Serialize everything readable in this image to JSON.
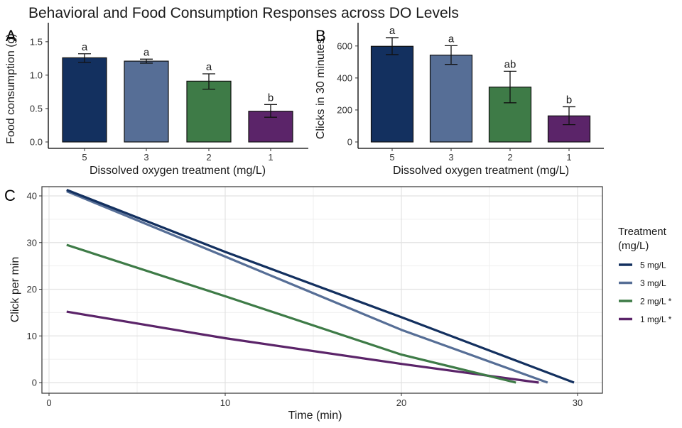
{
  "title": "Behavioral and Food Consumption Responses across DO Levels",
  "colors": {
    "5": "#13305f",
    "3": "#566e96",
    "2": "#3e7b47",
    "1": "#5b2469"
  },
  "chart_data": [
    {
      "panel": "A",
      "type": "bar",
      "title": "",
      "xlabel": "Dissolved oxygen treatment (mg/L)",
      "ylabel": "Food consumption (g)",
      "categories": [
        "5",
        "3",
        "2",
        "1"
      ],
      "values": [
        1.26,
        1.21,
        0.91,
        0.46
      ],
      "error_low": [
        1.19,
        1.18,
        0.79,
        0.37
      ],
      "error_high": [
        1.32,
        1.24,
        1.02,
        0.56
      ],
      "significance_labels": [
        "a",
        "a",
        "a",
        "b"
      ],
      "yticks": [
        0.0,
        0.5,
        1.0,
        1.5
      ],
      "ytick_labels": [
        "0.0",
        "0.5",
        "1.0",
        "1.5"
      ],
      "ylim": [
        0,
        1.7
      ],
      "grid": false
    },
    {
      "panel": "B",
      "type": "bar",
      "title": "",
      "xlabel": "Dissolved oxygen treatment (mg/L)",
      "ylabel": "Clicks in 30 minutes",
      "categories": [
        "5",
        "3",
        "2",
        "1"
      ],
      "values": [
        598,
        543,
        343,
        163
      ],
      "error_low": [
        546,
        485,
        245,
        108
      ],
      "error_high": [
        652,
        602,
        442,
        220
      ],
      "significance_labels": [
        "a",
        "a",
        "ab",
        "b"
      ],
      "yticks": [
        0,
        200,
        400,
        600
      ],
      "ytick_labels": [
        "0",
        "200",
        "400",
        "600"
      ],
      "ylim": [
        0,
        710
      ],
      "grid": false
    },
    {
      "panel": "C",
      "type": "line",
      "title": "",
      "xlabel": "Time (min)",
      "ylabel": "Click per min",
      "xticks": [
        0,
        10,
        20,
        30
      ],
      "xtick_labels": [
        "0",
        "10",
        "20",
        "30"
      ],
      "yticks": [
        0,
        10,
        20,
        30,
        40
      ],
      "ytick_labels": [
        "0",
        "10",
        "20",
        "30",
        "40"
      ],
      "xlim": [
        -1.2,
        30.8
      ],
      "ylim": [
        -2.2,
        42.5
      ],
      "grid": true,
      "legend": {
        "title": "Treatment (mg/L)",
        "title_lines": [
          "Treatment",
          "(mg/L)"
        ],
        "placement": "right"
      },
      "series": [
        {
          "name": "5 mg/L",
          "key": "5",
          "x": [
            1,
            10,
            20,
            29.8
          ],
          "y": [
            41.3,
            28.0,
            14.0,
            0.0
          ]
        },
        {
          "name": "3 mg/L",
          "key": "3",
          "x": [
            1,
            10,
            20,
            28.3
          ],
          "y": [
            41.0,
            27.0,
            11.3,
            0.0
          ]
        },
        {
          "name": "2 mg/L *",
          "key": "2",
          "x": [
            1,
            10,
            20,
            26.5
          ],
          "y": [
            29.5,
            18.5,
            6.0,
            0.0
          ]
        },
        {
          "name": "1 mg/L *",
          "key": "1",
          "x": [
            1,
            10,
            20,
            27.8
          ],
          "y": [
            15.2,
            9.5,
            4.0,
            0.0
          ]
        }
      ]
    }
  ]
}
